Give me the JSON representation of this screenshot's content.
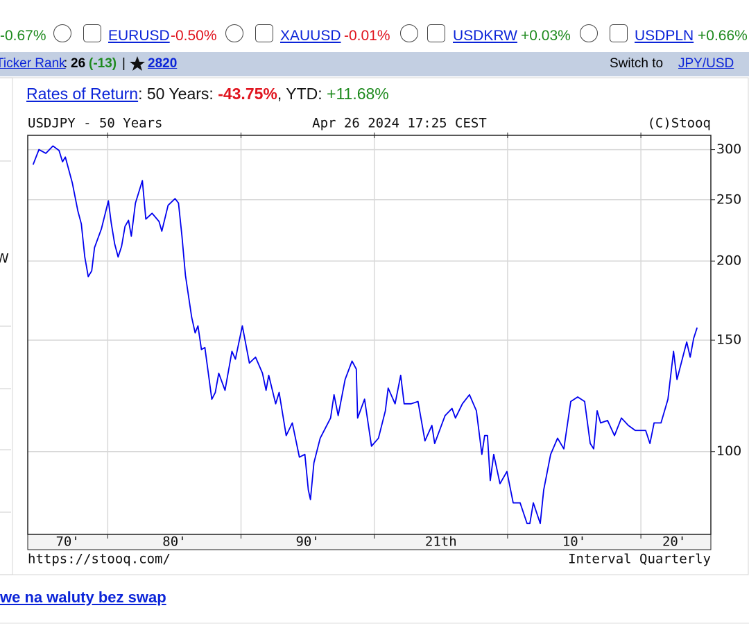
{
  "ticker_bar": {
    "tickers": [
      {
        "change": "-0.67%",
        "color": "#1e8a1e"
      },
      {
        "symbol": "EURUSD",
        "change": "-0.50%",
        "color": "#e0141e"
      },
      {
        "symbol": "XAUUSD",
        "change": "-0.01%",
        "color": "#e0141e"
      },
      {
        "symbol": "USDKRW",
        "change": "+0.03%",
        "color": "#1e8a1e"
      },
      {
        "symbol": "USDPLN",
        "change": "+0.66%",
        "color": "#1e8a1e"
      }
    ]
  },
  "info_bar": {
    "rank_link": "Ticker Rank",
    "rank_sep": ":",
    "rank": "26",
    "rank_change": "(-13)",
    "divider": "|",
    "views": "2820",
    "switch_text": "Switch to",
    "switch_link": "JPY/USD"
  },
  "side_panel": {
    "fragment": "W"
  },
  "returns": {
    "link": "Rates of Return",
    "period_label": ": 50 Years:",
    "period_value": "-43.75%",
    "ytd_label": ", YTD:",
    "ytd_value": "+11.68%"
  },
  "chart_data": {
    "type": "line",
    "title": "USDJPY - 50 Years",
    "timestamp": "Apr 26 2024 17:25 CEST",
    "source": "(C)Stooq",
    "url": "https://stooq.com/",
    "interval": "Interval Quarterly",
    "color": "#0000ee",
    "ylog": true,
    "grid": true,
    "ylim": [
      74,
      316
    ],
    "yticks": [
      100,
      150,
      200,
      250,
      300
    ],
    "xlim": [
      1974,
      2025.25
    ],
    "xgrid": [
      1980,
      1990,
      2000,
      2010,
      2020
    ],
    "xticks": [
      {
        "value": 1977,
        "label": "70'"
      },
      {
        "value": 1985,
        "label": "80'"
      },
      {
        "value": 1995,
        "label": "90'"
      },
      {
        "value": 2005,
        "label": "21th"
      },
      {
        "value": 2015,
        "label": "10'"
      },
      {
        "value": 2022.5,
        "label": "20'"
      }
    ],
    "x": [
      1974.4,
      1974.84,
      1975.36,
      1975.89,
      1976.35,
      1976.61,
      1976.82,
      1977.34,
      1977.76,
      1978.02,
      1978.28,
      1978.54,
      1978.8,
      1979.01,
      1979.53,
      1980.05,
      1980.26,
      1980.52,
      1980.78,
      1981.04,
      1981.3,
      1981.56,
      1981.77,
      1982.08,
      1982.6,
      1982.86,
      1983.33,
      1983.85,
      1984.06,
      1984.53,
      1985.05,
      1985.31,
      1985.57,
      1985.83,
      1986.3,
      1986.56,
      1986.77,
      1987.03,
      1987.29,
      1987.81,
      1988.07,
      1988.33,
      1988.8,
      1989.32,
      1989.58,
      1990.1,
      1990.63,
      1991.09,
      1991.61,
      1991.88,
      1992.08,
      1992.6,
      1992.86,
      1993.39,
      1993.85,
      1994.38,
      1994.79,
      1995.05,
      1995.21,
      1995.47,
      1995.94,
      1996.72,
      1996.98,
      1997.29,
      1997.81,
      1998.33,
      1998.65,
      1998.75,
      1999.27,
      1999.79,
      2000.31,
      2000.83,
      2001.04,
      2001.56,
      2001.98,
      2002.24,
      2002.76,
      2003.28,
      2003.8,
      2004.32,
      2004.53,
      2005.31,
      2005.83,
      2006.09,
      2006.61,
      2007.14,
      2007.66,
      2008.07,
      2008.28,
      2008.49,
      2008.7,
      2008.96,
      2009.43,
      2009.95,
      2010.42,
      2010.94,
      2011.46,
      2011.67,
      2011.93,
      2012.45,
      2012.71,
      2013.23,
      2013.75,
      2014.22,
      2014.74,
      2015.26,
      2015.78,
      2016.2,
      2016.46,
      2016.72,
      2016.98,
      2017.5,
      2018.02,
      2018.54,
      2019.06,
      2019.58,
      2020.36,
      2020.68,
      2020.99,
      2021.51,
      2022.03,
      2022.45,
      2022.71,
      2023.18,
      2023.44,
      2023.7,
      2023.96,
      2024.22
    ],
    "values": [
      284,
      300,
      296,
      304,
      299,
      287,
      292,
      266,
      240,
      229,
      203,
      189,
      193,
      210,
      225,
      249,
      230,
      213,
      203,
      211,
      227,
      232,
      219,
      247,
      268,
      233,
      238,
      231,
      223,
      245,
      251,
      247,
      219,
      190,
      163,
      154,
      158,
      145,
      146,
      121,
      124,
      133,
      125,
      144,
      140,
      158,
      138,
      141,
      133,
      125,
      132,
      119,
      124,
      106,
      111,
      98,
      99,
      87,
      84,
      96,
      105,
      113,
      123,
      114,
      130,
      139,
      135,
      113,
      121,
      102,
      105,
      116,
      126,
      119,
      132,
      119,
      119,
      120,
      104,
      110,
      103,
      114,
      117,
      113,
      119,
      123,
      116,
      99,
      106,
      106,
      90,
      99,
      89,
      93,
      83,
      83,
      77,
      77,
      83,
      77,
      87,
      99,
      105,
      101,
      120,
      122,
      120,
      103,
      101,
      116,
      111,
      112,
      106,
      113,
      110,
      108,
      108,
      103,
      111,
      111,
      121,
      144,
      130,
      142,
      149,
      141,
      151,
      157
    ]
  },
  "footer": {
    "link": "we na waluty bez swap"
  }
}
